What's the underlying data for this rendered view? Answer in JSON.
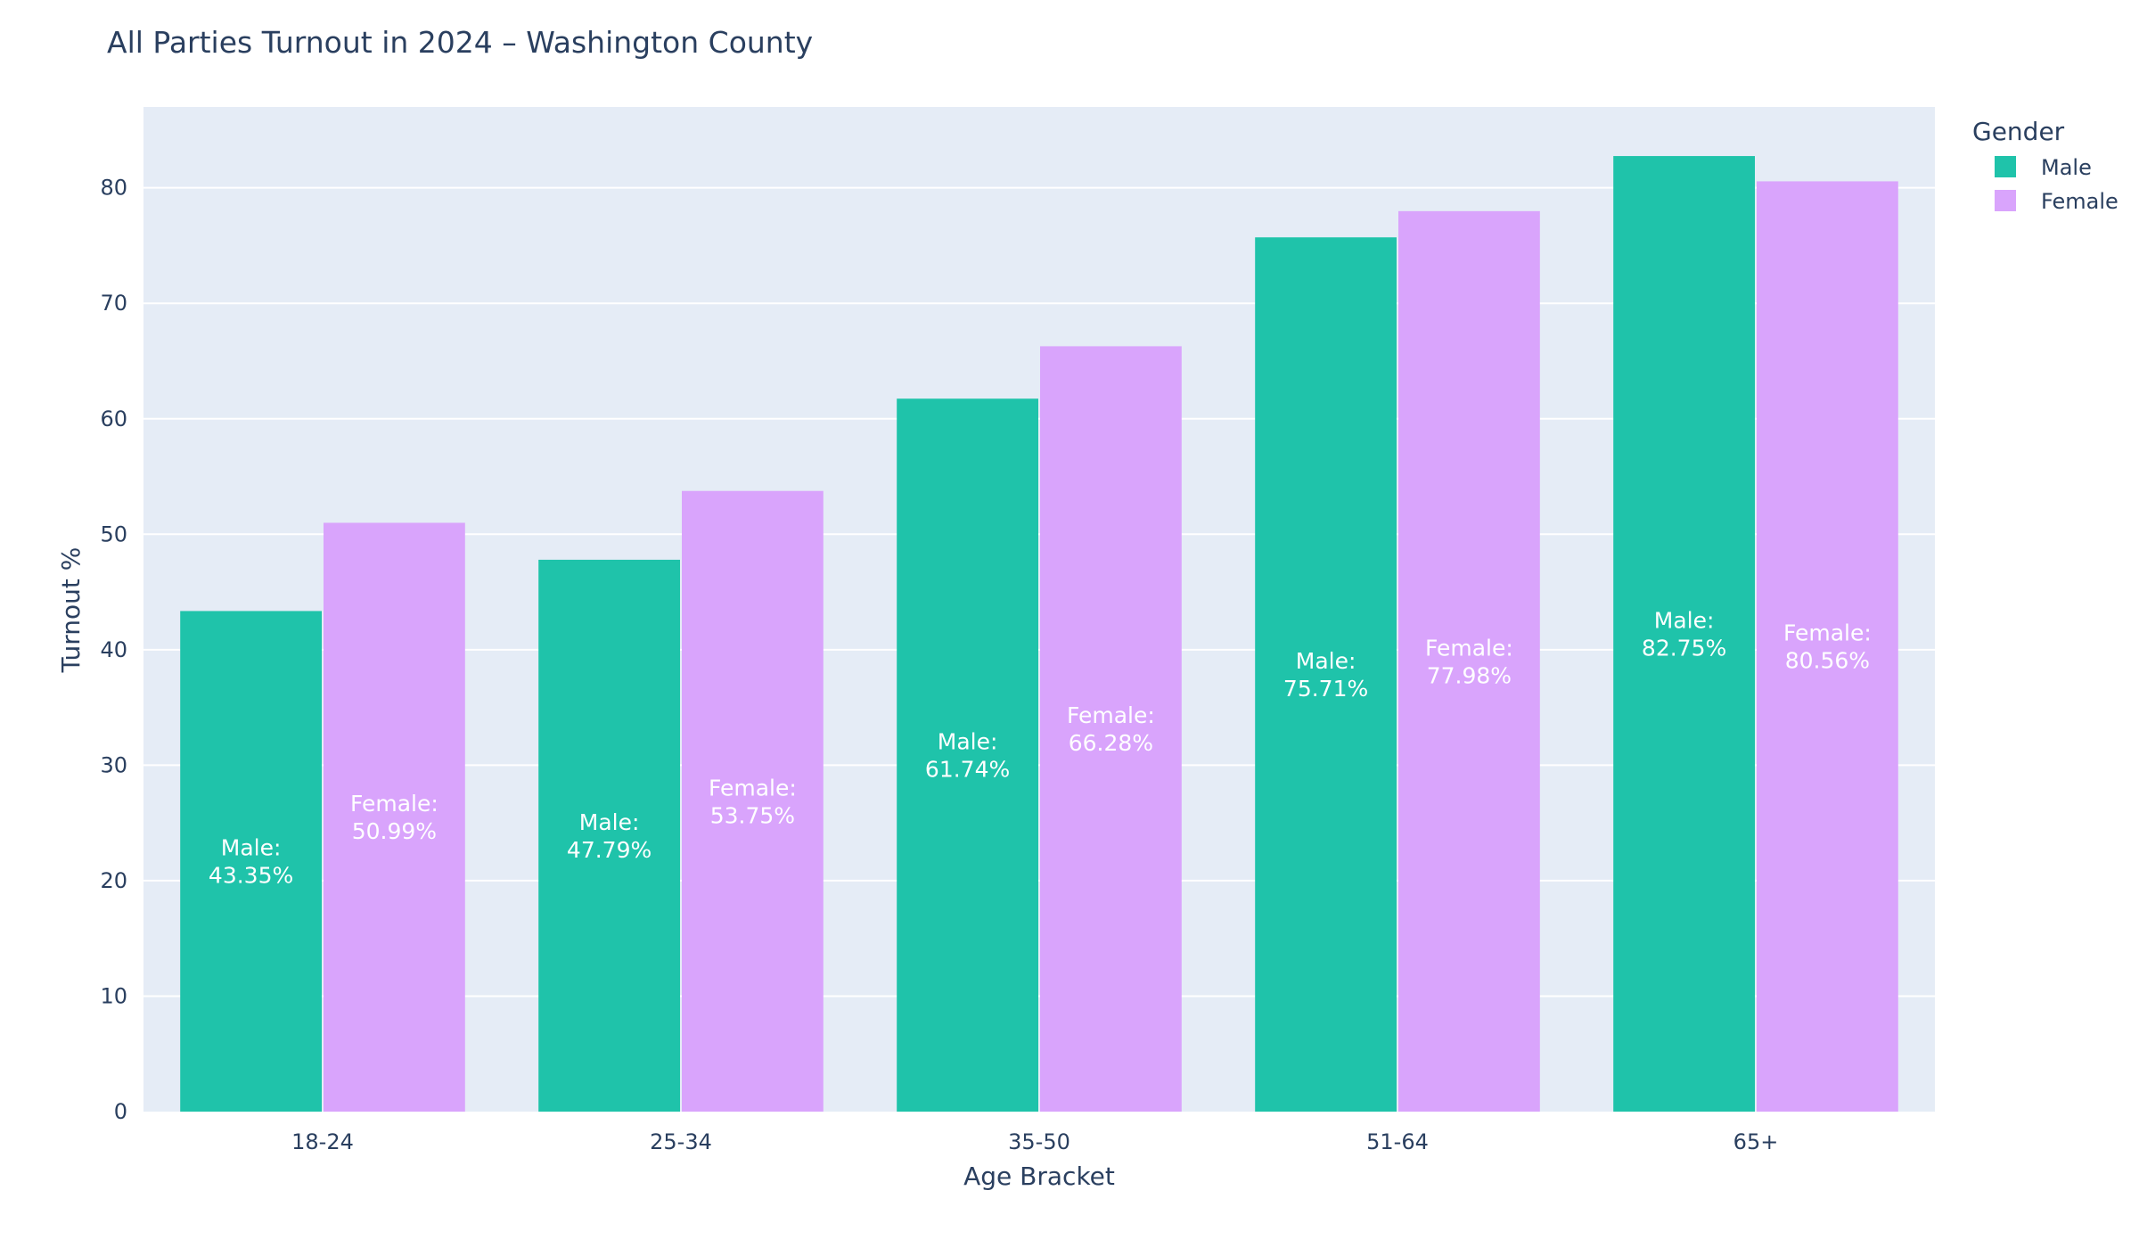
{
  "chart_data": {
    "type": "bar",
    "title": "All Parties Turnout in 2024 – Washington County",
    "xlabel": "Age Bracket",
    "ylabel": "Turnout %",
    "categories": [
      "18-24",
      "25-34",
      "35-50",
      "51-64",
      "65+"
    ],
    "ylim": [
      0,
      87
    ],
    "yticks": [
      0,
      10,
      20,
      30,
      40,
      50,
      60,
      70,
      80
    ],
    "legend": {
      "title": "Gender",
      "position": "top-right"
    },
    "grid": true,
    "series": [
      {
        "name": "Male",
        "color": "#1fc3aa",
        "values": [
          43.35,
          47.79,
          61.74,
          75.71,
          82.75
        ],
        "labels": [
          "Male:\n43.35%",
          "Male:\n47.79%",
          "Male:\n61.74%",
          "Male:\n75.71%",
          "Male:\n82.75%"
        ]
      },
      {
        "name": "Female",
        "color": "#d9a4fc",
        "values": [
          50.99,
          53.75,
          66.28,
          77.98,
          80.56
        ],
        "labels": [
          "Female:\n50.99%",
          "Female:\n53.75%",
          "Female:\n66.28%",
          "Female:\n77.98%",
          "Female:\n80.56%"
        ]
      }
    ]
  }
}
